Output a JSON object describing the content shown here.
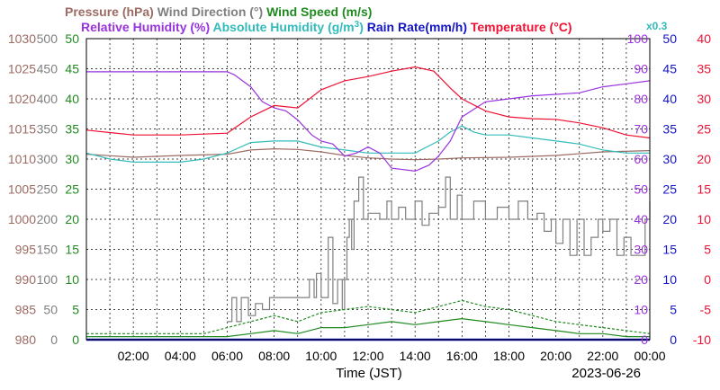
{
  "chart_data": {
    "type": "line",
    "date": "2023-06-26",
    "xlabel": "Time (JST)",
    "x_range": [
      "00:00",
      "24:00"
    ],
    "x_ticks": [
      "02:00",
      "04:00",
      "06:00",
      "08:00",
      "10:00",
      "12:00",
      "14:00",
      "16:00",
      "18:00",
      "20:00",
      "22:00",
      "00:00"
    ],
    "grid": true,
    "legend_row1": [
      {
        "text": "Pressure (hPa)",
        "color": "#9c6b63"
      },
      {
        "text": "Wind Direction (°)",
        "color": "#7f7f7f"
      },
      {
        "text": "Wind Speed (m/s)",
        "color": "#1f8a1f"
      }
    ],
    "legend_row2": [
      {
        "text": "Relative Humidity (%)",
        "color": "#9933dd"
      },
      {
        "text": "Absolute Humidity (g/m",
        "sup": "3",
        "tail": ")",
        "color": "#33bbbb"
      },
      {
        "text": "Rain Rate(mm/h)",
        "color": "#1515c8"
      },
      {
        "text": "Temperature (°C)",
        "color": "#ee1133"
      }
    ],
    "annotation": {
      "text": "x0.3",
      "color": "#33bbbb"
    },
    "axes": [
      {
        "name": "Pressure",
        "color": "#9c6b63",
        "ticks": [
          "980",
          "985",
          "990",
          "995",
          "1000",
          "1005",
          "1010",
          "1015",
          "1020",
          "1025",
          "1030"
        ]
      },
      {
        "name": "Wind Direction",
        "color": "#7f7f7f",
        "ticks": [
          "0",
          "50",
          "100",
          "150",
          "200",
          "250",
          "300",
          "350",
          "400",
          "450",
          "500"
        ]
      },
      {
        "name": "Wind Speed",
        "color": "#1f8a1f",
        "ticks": [
          "0",
          "5",
          "10",
          "15",
          "20",
          "25",
          "30",
          "35",
          "40",
          "45",
          "50"
        ]
      },
      {
        "name": "Relative Humidity",
        "color": "#9933dd",
        "ticks": [
          "0",
          "10",
          "20",
          "30",
          "40",
          "50",
          "60",
          "70",
          "80",
          "90",
          "100"
        ]
      },
      {
        "name": "Rain Rate",
        "color": "#1515c8",
        "ticks": [
          "0",
          "5",
          "10",
          "15",
          "20",
          "25",
          "30",
          "35",
          "40",
          "45",
          "50"
        ]
      },
      {
        "name": "Temperature",
        "color": "#ee1133",
        "ticks": [
          "-10",
          "-5",
          "0",
          "5",
          "10",
          "15",
          "20",
          "25",
          "30",
          "35",
          "40"
        ]
      }
    ],
    "series": [
      {
        "name": "Temperature",
        "unit": "°C",
        "color": "#ee1133",
        "axis": "Temperature",
        "ymin": -10,
        "ymax": 40,
        "points": [
          [
            0,
            24.8
          ],
          [
            2,
            24.0
          ],
          [
            4,
            24.0
          ],
          [
            6,
            24.3
          ],
          [
            7,
            27
          ],
          [
            8,
            28.9
          ],
          [
            9,
            28.5
          ],
          [
            10,
            31.5
          ],
          [
            11,
            33
          ],
          [
            12,
            33.7
          ],
          [
            13,
            34.6
          ],
          [
            14,
            35.3
          ],
          [
            14.8,
            34.6
          ],
          [
            15.5,
            31.8
          ],
          [
            16,
            30
          ],
          [
            17,
            28
          ],
          [
            18,
            27
          ],
          [
            19,
            26.7
          ],
          [
            20,
            26.6
          ],
          [
            21,
            26.0
          ],
          [
            22,
            25.2
          ],
          [
            23,
            24.0
          ],
          [
            24,
            23.5
          ]
        ]
      },
      {
        "name": "Relative Humidity",
        "unit": "%",
        "color": "#9933dd",
        "axis": "Relative Humidity",
        "ymin": 0,
        "ymax": 100,
        "points": [
          [
            0,
            89
          ],
          [
            6,
            89
          ],
          [
            6.3,
            88
          ],
          [
            7,
            84
          ],
          [
            7.5,
            79
          ],
          [
            8,
            77
          ],
          [
            8.5,
            76
          ],
          [
            9,
            73
          ],
          [
            9.6,
            68
          ],
          [
            10,
            66
          ],
          [
            10.5,
            65
          ],
          [
            11,
            61
          ],
          [
            11.5,
            62
          ],
          [
            12,
            64
          ],
          [
            12.5,
            62
          ],
          [
            13,
            57
          ],
          [
            14,
            56
          ],
          [
            14.6,
            58
          ],
          [
            15,
            61
          ],
          [
            15.5,
            66
          ],
          [
            16,
            74
          ],
          [
            17,
            79
          ],
          [
            18,
            80
          ],
          [
            19,
            81
          ],
          [
            20,
            81.5
          ],
          [
            21,
            82
          ],
          [
            22,
            84
          ],
          [
            23,
            85
          ],
          [
            24,
            86
          ]
        ]
      },
      {
        "name": "Absolute Humidity",
        "unit": "g/m3",
        "scale": "x0.3",
        "color": "#33bbbb",
        "axis": "Relative Humidity",
        "ymin": 0,
        "ymax": 100,
        "points": [
          [
            0,
            62
          ],
          [
            1,
            60
          ],
          [
            2,
            59
          ],
          [
            3,
            59
          ],
          [
            4,
            59
          ],
          [
            5,
            60
          ],
          [
            6,
            62
          ],
          [
            7,
            65.5
          ],
          [
            8,
            66
          ],
          [
            9,
            66
          ],
          [
            10,
            64
          ],
          [
            11,
            63
          ],
          [
            12,
            62
          ],
          [
            13,
            62
          ],
          [
            14,
            62
          ],
          [
            15,
            66
          ],
          [
            15.5,
            69
          ],
          [
            16,
            71
          ],
          [
            16.5,
            69
          ],
          [
            17,
            68
          ],
          [
            18,
            68
          ],
          [
            19,
            67
          ],
          [
            20,
            66
          ],
          [
            21,
            65
          ],
          [
            22,
            63
          ],
          [
            23,
            62
          ],
          [
            24,
            62
          ]
        ]
      },
      {
        "name": "Pressure",
        "unit": "hPa",
        "color": "#9c6b63",
        "axis": "Pressure",
        "ymin": 980,
        "ymax": 1030,
        "points": [
          [
            0,
            1010.8
          ],
          [
            2,
            1010.3
          ],
          [
            4,
            1010.6
          ],
          [
            6,
            1010.8
          ],
          [
            7,
            1011.5
          ],
          [
            8,
            1011.7
          ],
          [
            9,
            1011.6
          ],
          [
            10,
            1011.2
          ],
          [
            11,
            1010.6
          ],
          [
            12,
            1010.2
          ],
          [
            13,
            1010.0
          ],
          [
            14,
            1009.9
          ],
          [
            15,
            1010.0
          ],
          [
            16,
            1010.2
          ],
          [
            18,
            1010.3
          ],
          [
            20,
            1010.6
          ],
          [
            22,
            1011.2
          ],
          [
            24,
            1011.4
          ]
        ]
      },
      {
        "name": "Wind Direction",
        "unit": "°",
        "color": "#7f7f7f",
        "axis": "Wind Direction",
        "ymin": 0,
        "ymax": 500,
        "style": "step",
        "points": [
          [
            6,
            30
          ],
          [
            6.2,
            70
          ],
          [
            6.4,
            30
          ],
          [
            6.6,
            70
          ],
          [
            6.9,
            40
          ],
          [
            7.2,
            60
          ],
          [
            7.5,
            50
          ],
          [
            7.8,
            70
          ],
          [
            8,
            70
          ],
          [
            8.5,
            70
          ],
          [
            9,
            70
          ],
          [
            9.3,
            70
          ],
          [
            9.5,
            100
          ],
          [
            9.7,
            70
          ],
          [
            9.8,
            110
          ],
          [
            10,
            70
          ],
          [
            10.3,
            170
          ],
          [
            10.5,
            60
          ],
          [
            10.7,
            100
          ],
          [
            10.9,
            50
          ],
          [
            11,
            100
          ],
          [
            11.1,
            170
          ],
          [
            11.2,
            200
          ],
          [
            11.3,
            150
          ],
          [
            11.4,
            230
          ],
          [
            11.6,
            270
          ],
          [
            11.8,
            200
          ],
          [
            12,
            210
          ],
          [
            12.5,
            200
          ],
          [
            12.8,
            230
          ],
          [
            13,
            200
          ],
          [
            13.3,
            220
          ],
          [
            13.6,
            200
          ],
          [
            14,
            230
          ],
          [
            14.3,
            190
          ],
          [
            14.6,
            210
          ],
          [
            15,
            220
          ],
          [
            15.3,
            270
          ],
          [
            15.5,
            200
          ],
          [
            15.8,
            240
          ],
          [
            16,
            200
          ],
          [
            16.5,
            230
          ],
          [
            17,
            200
          ],
          [
            17.5,
            220
          ],
          [
            18,
            200
          ],
          [
            18.4,
            230
          ],
          [
            18.8,
            200
          ],
          [
            19.2,
            210
          ],
          [
            19.5,
            180
          ],
          [
            19.8,
            200
          ],
          [
            20,
            160
          ],
          [
            20.3,
            200
          ],
          [
            20.6,
            140
          ],
          [
            20.9,
            200
          ],
          [
            21.2,
            140
          ],
          [
            21.5,
            170
          ],
          [
            21.8,
            200
          ],
          [
            22,
            180
          ],
          [
            22.3,
            200
          ],
          [
            22.6,
            140
          ],
          [
            22.9,
            170
          ],
          [
            23.2,
            140
          ],
          [
            23.5,
            140
          ],
          [
            23.8,
            200
          ],
          [
            24,
            230
          ]
        ]
      },
      {
        "name": "Wind Speed",
        "unit": "m/s",
        "color": "#1f8a1f",
        "axis": "Wind Speed",
        "ymin": 0,
        "ymax": 50,
        "points": [
          [
            0,
            0.5
          ],
          [
            6,
            0.5
          ],
          [
            7,
            1
          ],
          [
            8,
            1.5
          ],
          [
            9,
            1
          ],
          [
            10,
            2
          ],
          [
            11,
            2
          ],
          [
            12,
            2.5
          ],
          [
            13,
            3
          ],
          [
            14,
            2.5
          ],
          [
            15,
            3
          ],
          [
            16,
            3.5
          ],
          [
            17,
            3
          ],
          [
            18,
            2.5
          ],
          [
            19,
            2
          ],
          [
            20,
            1.5
          ],
          [
            21,
            1
          ],
          [
            22,
            1
          ],
          [
            23,
            0.5
          ],
          [
            24,
            0.5
          ]
        ]
      },
      {
        "name": "Wind Speed Gust",
        "unit": "m/s",
        "color": "#1f8a1f",
        "axis": "Wind Speed",
        "ymin": 0,
        "ymax": 50,
        "style": "dashed",
        "points": [
          [
            0,
            1
          ],
          [
            5,
            1
          ],
          [
            6,
            2
          ],
          [
            7,
            3
          ],
          [
            8,
            4
          ],
          [
            9,
            3
          ],
          [
            10,
            4.5
          ],
          [
            11,
            5
          ],
          [
            12,
            5.5
          ],
          [
            13,
            5
          ],
          [
            14,
            4.5
          ],
          [
            15,
            5.5
          ],
          [
            16,
            6.5
          ],
          [
            17,
            5.5
          ],
          [
            18,
            5
          ],
          [
            19,
            4
          ],
          [
            20,
            3
          ],
          [
            21,
            2.5
          ],
          [
            22,
            2
          ],
          [
            23,
            1.5
          ],
          [
            24,
            1
          ]
        ]
      },
      {
        "name": "Rain Rate",
        "unit": "mm/h",
        "color": "#1515c8",
        "axis": "Rain Rate",
        "ymin": 0,
        "ymax": 50,
        "points": [
          [
            0,
            0
          ],
          [
            24,
            0
          ]
        ]
      }
    ]
  }
}
